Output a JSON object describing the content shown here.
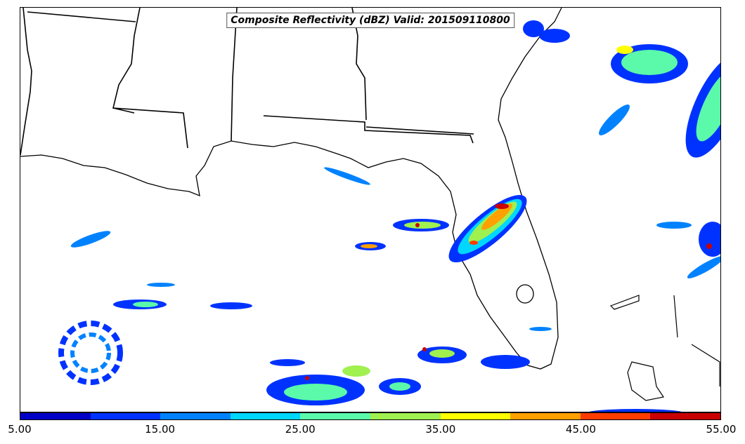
{
  "title": "Composite Reflectivity (dBZ) Valid: 201509110800",
  "colorbar": {
    "colors": [
      "#0000c8",
      "#0032ff",
      "#0082ff",
      "#00d7ff",
      "#5afaaa",
      "#a0f050",
      "#ffff00",
      "#ffa000",
      "#ff3c00",
      "#c80000"
    ],
    "tick_labels": [
      "5.00",
      "15.00",
      "25.00",
      "35.00",
      "45.00",
      "55.00"
    ],
    "min": 5,
    "max": 55
  },
  "chart_data": {
    "type": "heatmap",
    "variable": "Composite Reflectivity",
    "units": "dBZ",
    "valid_time": "201509110800",
    "value_range": [
      5,
      55
    ],
    "colorbar_ticks": [
      5,
      15,
      25,
      35,
      45,
      55
    ]
  }
}
